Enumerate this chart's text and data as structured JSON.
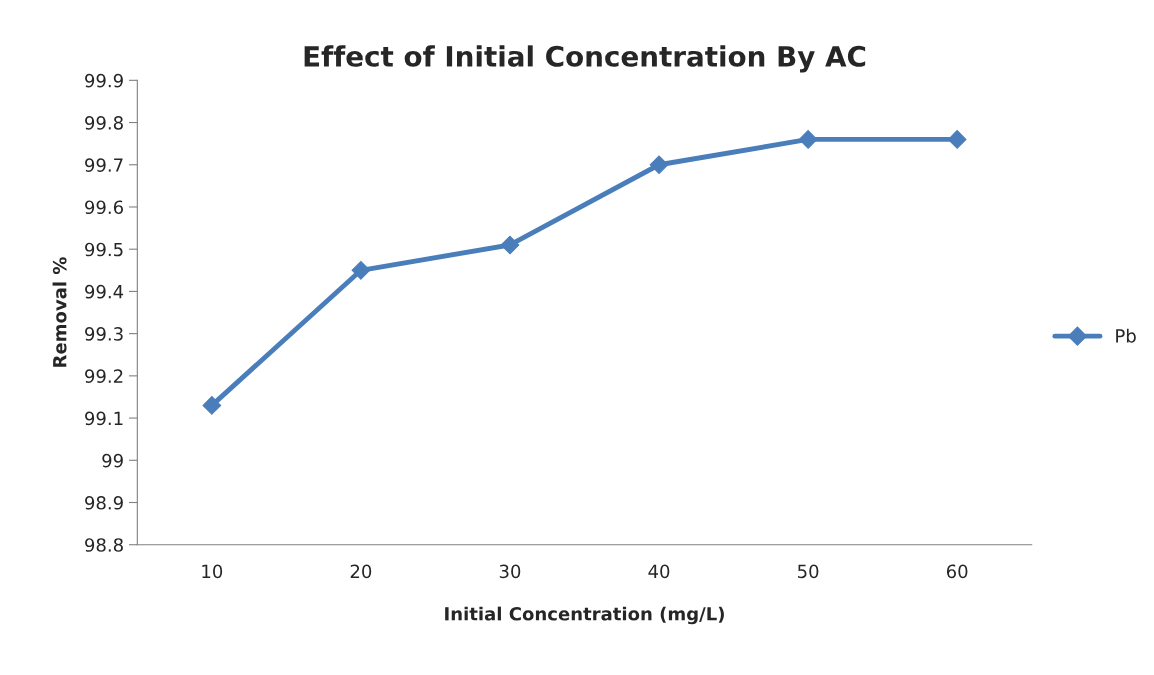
{
  "chart_data": {
    "type": "line",
    "title": "Effect of Initial Concentration By AC",
    "xlabel": "Initial Concentration (mg/L)",
    "ylabel": "Removal %",
    "categories": [
      "10",
      "20",
      "30",
      "40",
      "50",
      "60"
    ],
    "series": [
      {
        "name": "Pb",
        "color": "#4a7ebb",
        "values": [
          99.13,
          99.45,
          99.51,
          99.7,
          99.76,
          99.76
        ]
      }
    ],
    "ylim": [
      98.8,
      99.9
    ],
    "yticks": [
      98.8,
      98.9,
      99,
      99.1,
      99.2,
      99.3,
      99.4,
      99.5,
      99.6,
      99.7,
      99.8,
      99.9
    ],
    "grid": false,
    "legend": "right",
    "marker": "diamond",
    "line_style": "solid"
  }
}
